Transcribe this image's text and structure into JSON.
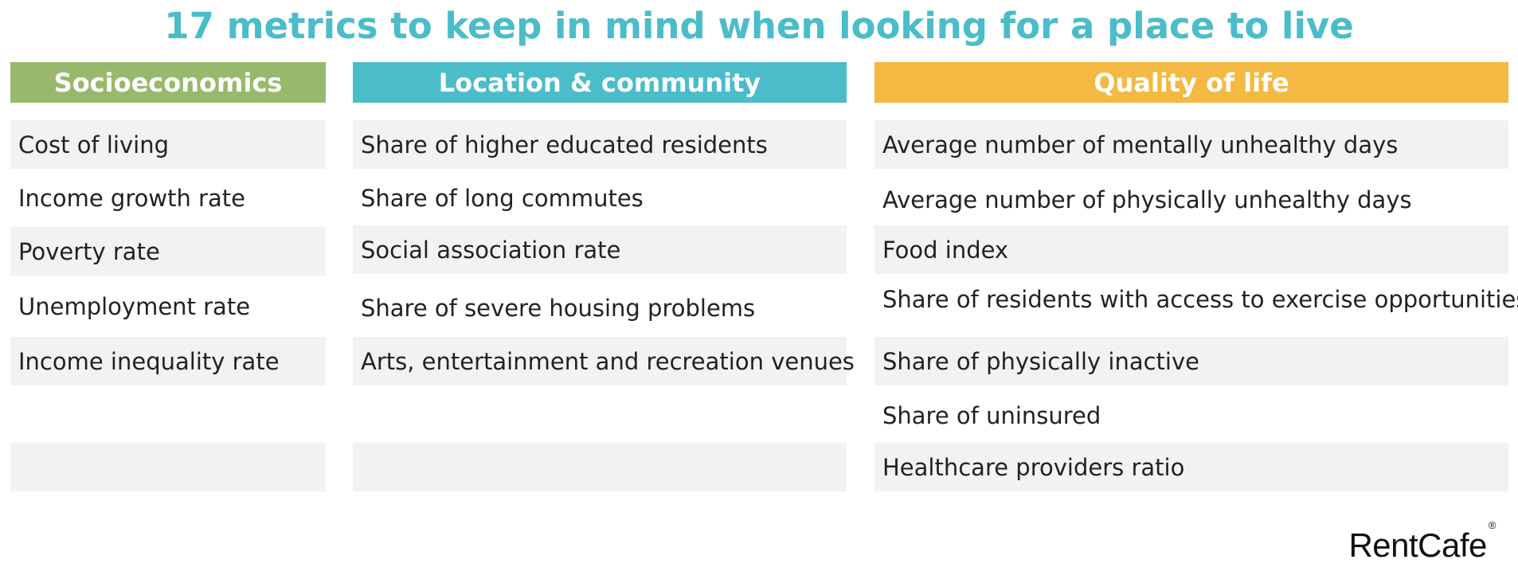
{
  "title": "17 metrics to keep in mind when looking for a place to live",
  "colors": {
    "title": "#4bbcca",
    "socioeconomics": "#98b96c",
    "location": "#4bbcca",
    "quality": "#f4b942",
    "row_shade": "#f2f2f2"
  },
  "columns": [
    {
      "header": "Socioeconomics",
      "items": [
        "Cost of living",
        "Income growth rate",
        "Poverty rate",
        "Unemployment rate",
        "Income inequality rate",
        "",
        ""
      ]
    },
    {
      "header": "Location & community",
      "items": [
        "Share of higher educated residents",
        "Share of long commutes",
        "Social association rate",
        "Share of severe housing problems",
        "Arts, entertainment and recreation venues",
        "",
        ""
      ]
    },
    {
      "header": "Quality of life",
      "items": [
        "Average number of mentally unhealthy days",
        "Average number of physically unhealthy days",
        "Food index",
        "Share of residents with access to exercise opportunities",
        "Share of physically inactive",
        "Share of uninsured",
        "Healthcare providers ratio"
      ]
    }
  ],
  "logo": {
    "text": "RentCafe",
    "mark": "®"
  }
}
